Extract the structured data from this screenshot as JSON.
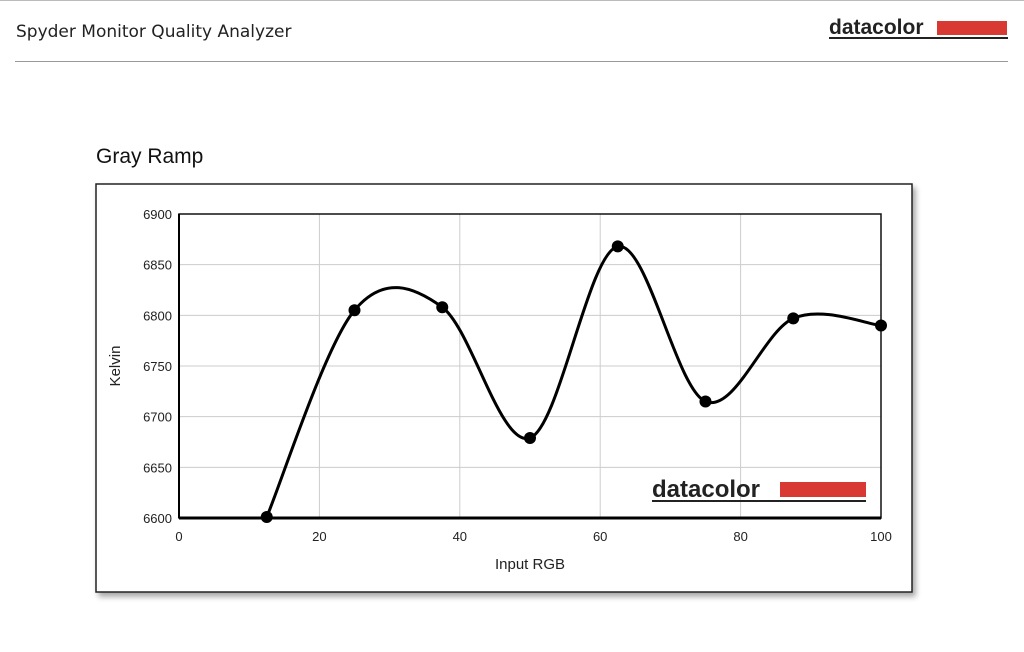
{
  "header": {
    "title": "Spyder Monitor Quality Analyzer",
    "logo": "datacolor"
  },
  "chart_data": {
    "type": "line",
    "title": "Gray Ramp",
    "x_label": "Input RGB",
    "y_label": "Kelvin",
    "watermark": "datacolor",
    "x": [
      12.5,
      25,
      37.5,
      50,
      62.5,
      75,
      87.5,
      100
    ],
    "values": [
      6601,
      6805,
      6808,
      6679,
      6868,
      6715,
      6797,
      6790
    ],
    "color": "#000000",
    "xlim": [
      0,
      100
    ],
    "xticks": [
      0,
      20,
      40,
      60,
      80,
      100
    ],
    "ylim": [
      6600,
      6900
    ],
    "yticks": [
      6600,
      6650,
      6700,
      6750,
      6800,
      6850,
      6900
    ],
    "grid": true
  }
}
